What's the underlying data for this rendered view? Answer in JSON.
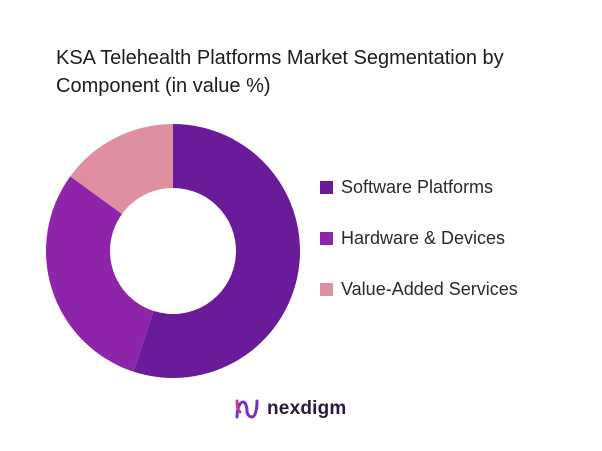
{
  "chart_data": {
    "type": "pie",
    "title": "KSA Telehealth Platforms Market Segmentation by Component (in value %)",
    "donut": true,
    "legend_position": "right",
    "series": [
      {
        "name": "Software Platforms",
        "value": 55,
        "color": "#6a1b9a"
      },
      {
        "name": "Hardware & Devices",
        "value": 30,
        "color": "#8e24aa"
      },
      {
        "name": "Value-Added Services",
        "value": 15,
        "color": "#e08fa3"
      }
    ]
  },
  "brand": {
    "name": "nexdigm",
    "logo_icon": "nexdigm-logo-icon"
  }
}
